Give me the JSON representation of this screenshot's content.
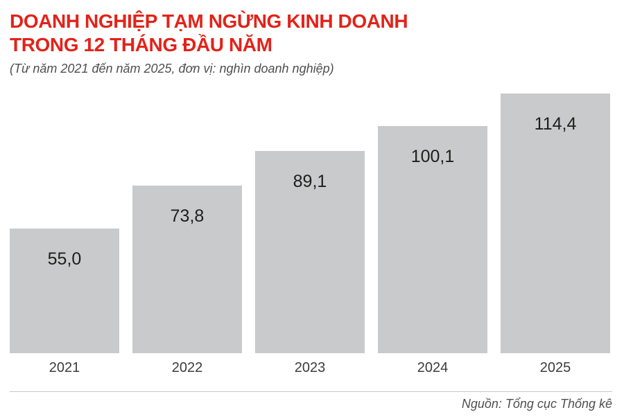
{
  "header": {
    "title_line1": "DOANH NGHIỆP TẠM NGỪNG KINH DOANH",
    "title_line2": "TRONG 12 THÁNG ĐẦU NĂM",
    "subtitle": "(Từ năm 2021 đến năm 2025, đơn vị: nghìn doanh nghiệp)"
  },
  "chart_data": {
    "type": "bar",
    "title": "DOANH NGHIỆP TẠM NGỪNG KINH DOANH TRONG 12 THÁNG ĐẦU NĂM",
    "subtitle": "(Từ năm 2021 đến năm 2025, đơn vị: nghìn doanh nghiệp)",
    "categories": [
      "2021",
      "2022",
      "2023",
      "2024",
      "2025"
    ],
    "values": [
      55.0,
      73.8,
      89.1,
      100.1,
      114.4
    ],
    "value_labels": [
      "55,0",
      "73,8",
      "89,1",
      "100,1",
      "114,4"
    ],
    "unit": "nghìn doanh nghiệp",
    "xlabel": "",
    "ylabel": "",
    "ylim": [
      0,
      116
    ],
    "grid": false,
    "legend": false,
    "bar_color": "#c9cacb",
    "value_label_color": "#1d1d1b"
  },
  "footer": {
    "source": "Nguồn: Tổng cục Thống kê"
  },
  "colors": {
    "accent_red": "#e2231a",
    "bar_gray": "#c9cacb",
    "text_dark": "#1d1d1b",
    "muted_gray": "#4f4f51",
    "divider_gray": "#c6c6c6"
  }
}
